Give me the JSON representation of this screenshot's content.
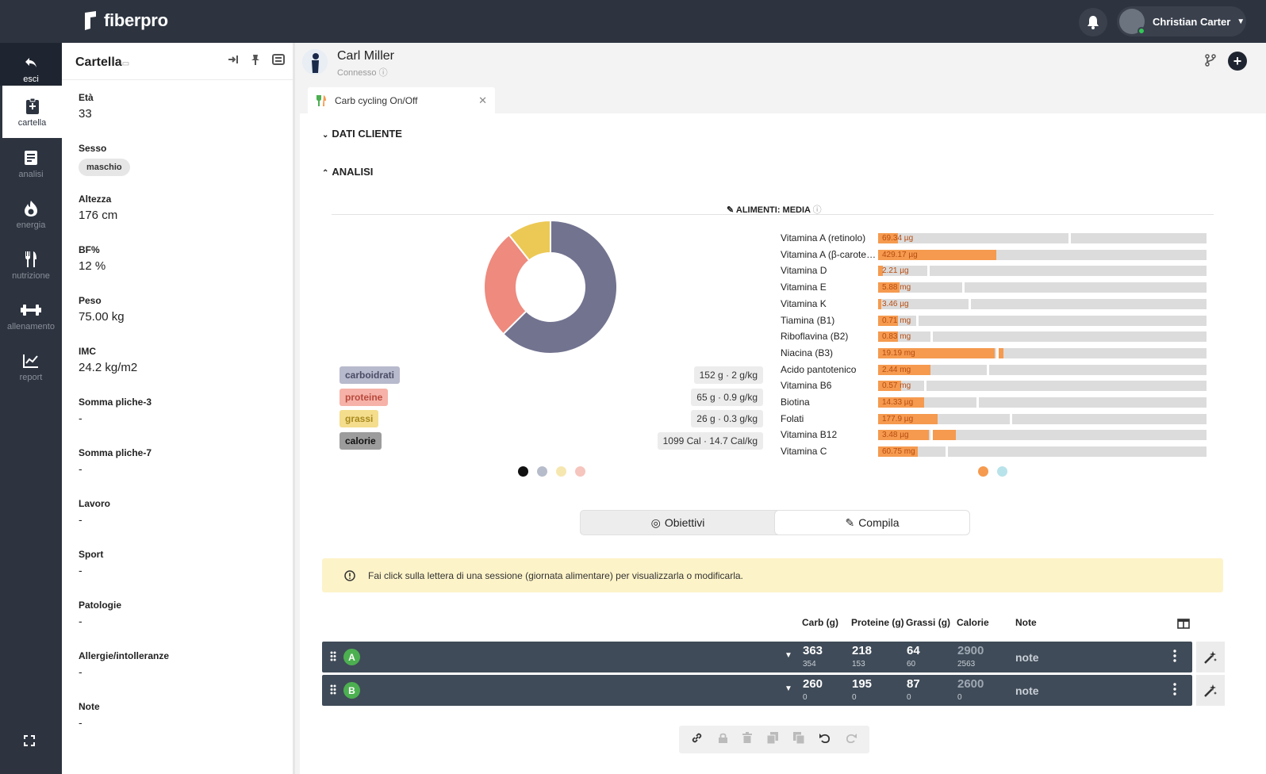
{
  "app": {
    "brand": "fiberpro"
  },
  "topbar": {
    "user_name": "Christian Carter"
  },
  "nav": [
    {
      "label": "esci",
      "icon": "back-arrow-icon"
    },
    {
      "label": "cartella",
      "icon": "clipboard-icon"
    },
    {
      "label": "analisi",
      "icon": "document-icon"
    },
    {
      "label": "energia",
      "icon": "flame-icon"
    },
    {
      "label": "nutrizione",
      "icon": "fork-knife-icon"
    },
    {
      "label": "allenamento",
      "icon": "dumbbell-icon"
    },
    {
      "label": "report",
      "icon": "chart-icon"
    }
  ],
  "cartella": {
    "title": "Cartella",
    "fields": [
      {
        "label": "Età",
        "value": "33"
      },
      {
        "label": "Sesso",
        "value": "maschio",
        "chip": true
      },
      {
        "label": "Altezza",
        "value": "176 cm"
      },
      {
        "label": "BF%",
        "value": "12 %"
      },
      {
        "label": "Peso",
        "value": "75.00 kg"
      },
      {
        "label": "IMC",
        "value": "24.2 kg/m2"
      },
      {
        "label": "Somma pliche-3",
        "value": "-"
      },
      {
        "label": "Somma pliche-7",
        "value": "-"
      },
      {
        "label": "Lavoro",
        "value": "-"
      },
      {
        "label": "Sport",
        "value": "-"
      },
      {
        "label": "Patologie",
        "value": "-"
      },
      {
        "label": "Allergie/intolleranze",
        "value": "-"
      },
      {
        "label": "Note",
        "value": "-"
      }
    ]
  },
  "client": {
    "name": "Carl Miller",
    "status": "Connesso"
  },
  "tab": {
    "label": "Carb cycling On/Off"
  },
  "sections": {
    "dati_cliente": "DATI CLIENTE",
    "analisi": "ANALISI"
  },
  "analysis_card": {
    "title": "ALIMENTI: MEDIA"
  },
  "colors": {
    "carb": "#72738f",
    "prot": "#ee8a7e",
    "fat": "#ecc955",
    "vitamin": "#f59a4f",
    "session_bar": "#3f4b58",
    "letter_badge": "#4caf50"
  },
  "chart_data": {
    "type": "pie",
    "categories": [
      "carboidrati",
      "proteine",
      "grassi"
    ],
    "values": [
      152,
      65,
      26
    ]
  },
  "macros": [
    {
      "label": "carboidrati",
      "value": "152 g · 2 g/kg"
    },
    {
      "label": "proteine",
      "value": "65 g · 0.9 g/kg"
    },
    {
      "label": "grassi",
      "value": "26 g · 0.3 g/kg"
    },
    {
      "label": "calorie",
      "value": "1099 Cal · 14.7 Cal/kg"
    }
  ],
  "vitamins": [
    {
      "name": "Vitamina A (retinolo)",
      "value": "69.34 µg",
      "fill": 0.06,
      "mark": 0.58
    },
    {
      "name": "Vitamina A (β-carotene)",
      "value": "429.17 µg",
      "fill": 0.36,
      "mark": null
    },
    {
      "name": "Vitamina D",
      "value": "2.21 µg",
      "fill": 0.015,
      "mark": 0.15
    },
    {
      "name": "Vitamina E",
      "value": "5.88 mg",
      "fill": 0.065,
      "mark": 0.255
    },
    {
      "name": "Vitamina K",
      "value": "3.46 µg",
      "fill": 0.01,
      "mark": 0.275
    },
    {
      "name": "Tiamina (B1)",
      "value": "0.71 mg",
      "fill": 0.06,
      "mark": 0.115
    },
    {
      "name": "Riboflavina (B2)",
      "value": "0.83 mg",
      "fill": 0.06,
      "mark": 0.16
    },
    {
      "name": "Niacina (B3)",
      "value": "19.19 mg",
      "fill": 0.355,
      "mark": 0.36,
      "tail": 0.375
    },
    {
      "name": "Acido pantotenico",
      "value": "2.44 mg",
      "fill": 0.16,
      "mark": 0.33
    },
    {
      "name": "Vitamina B6",
      "value": "0.57 mg",
      "fill": 0.07,
      "mark": 0.14
    },
    {
      "name": "Biotina",
      "value": "14.33 µg",
      "fill": 0.14,
      "mark": 0.3
    },
    {
      "name": "Folati",
      "value": "177.9 µg",
      "fill": 0.18,
      "mark": 0.4
    },
    {
      "name": "Vitamina B12",
      "value": "3.48 µg",
      "fill": 0.155,
      "mark": 0.16,
      "tail": 0.23
    },
    {
      "name": "Vitamina C",
      "value": "60.75 mg",
      "fill": 0.12,
      "mark": 0.205
    }
  ],
  "toggle": {
    "left": "Obiettivi",
    "right": "Compila"
  },
  "notice": {
    "text": "Fai click sulla lettera di una sessione (giornata alimentare) per visualizzarla o modificarla."
  },
  "table": {
    "headers": {
      "carb": "Carb (g)",
      "prot": "Proteine (g)",
      "fat": "Grassi (g)",
      "cal": "Calorie",
      "note": "Note"
    },
    "sessions": [
      {
        "letter": "A",
        "carb": "363",
        "carb_sub": "354",
        "prot": "218",
        "prot_sub": "153",
        "fat": "64",
        "fat_sub": "60",
        "cal": "2900",
        "cal_sub": "2563",
        "note": "note"
      },
      {
        "letter": "B",
        "carb": "260",
        "carb_sub": "0",
        "prot": "195",
        "prot_sub": "0",
        "fat": "87",
        "fat_sub": "0",
        "cal": "2600",
        "cal_sub": "0",
        "note": "note"
      }
    ]
  }
}
